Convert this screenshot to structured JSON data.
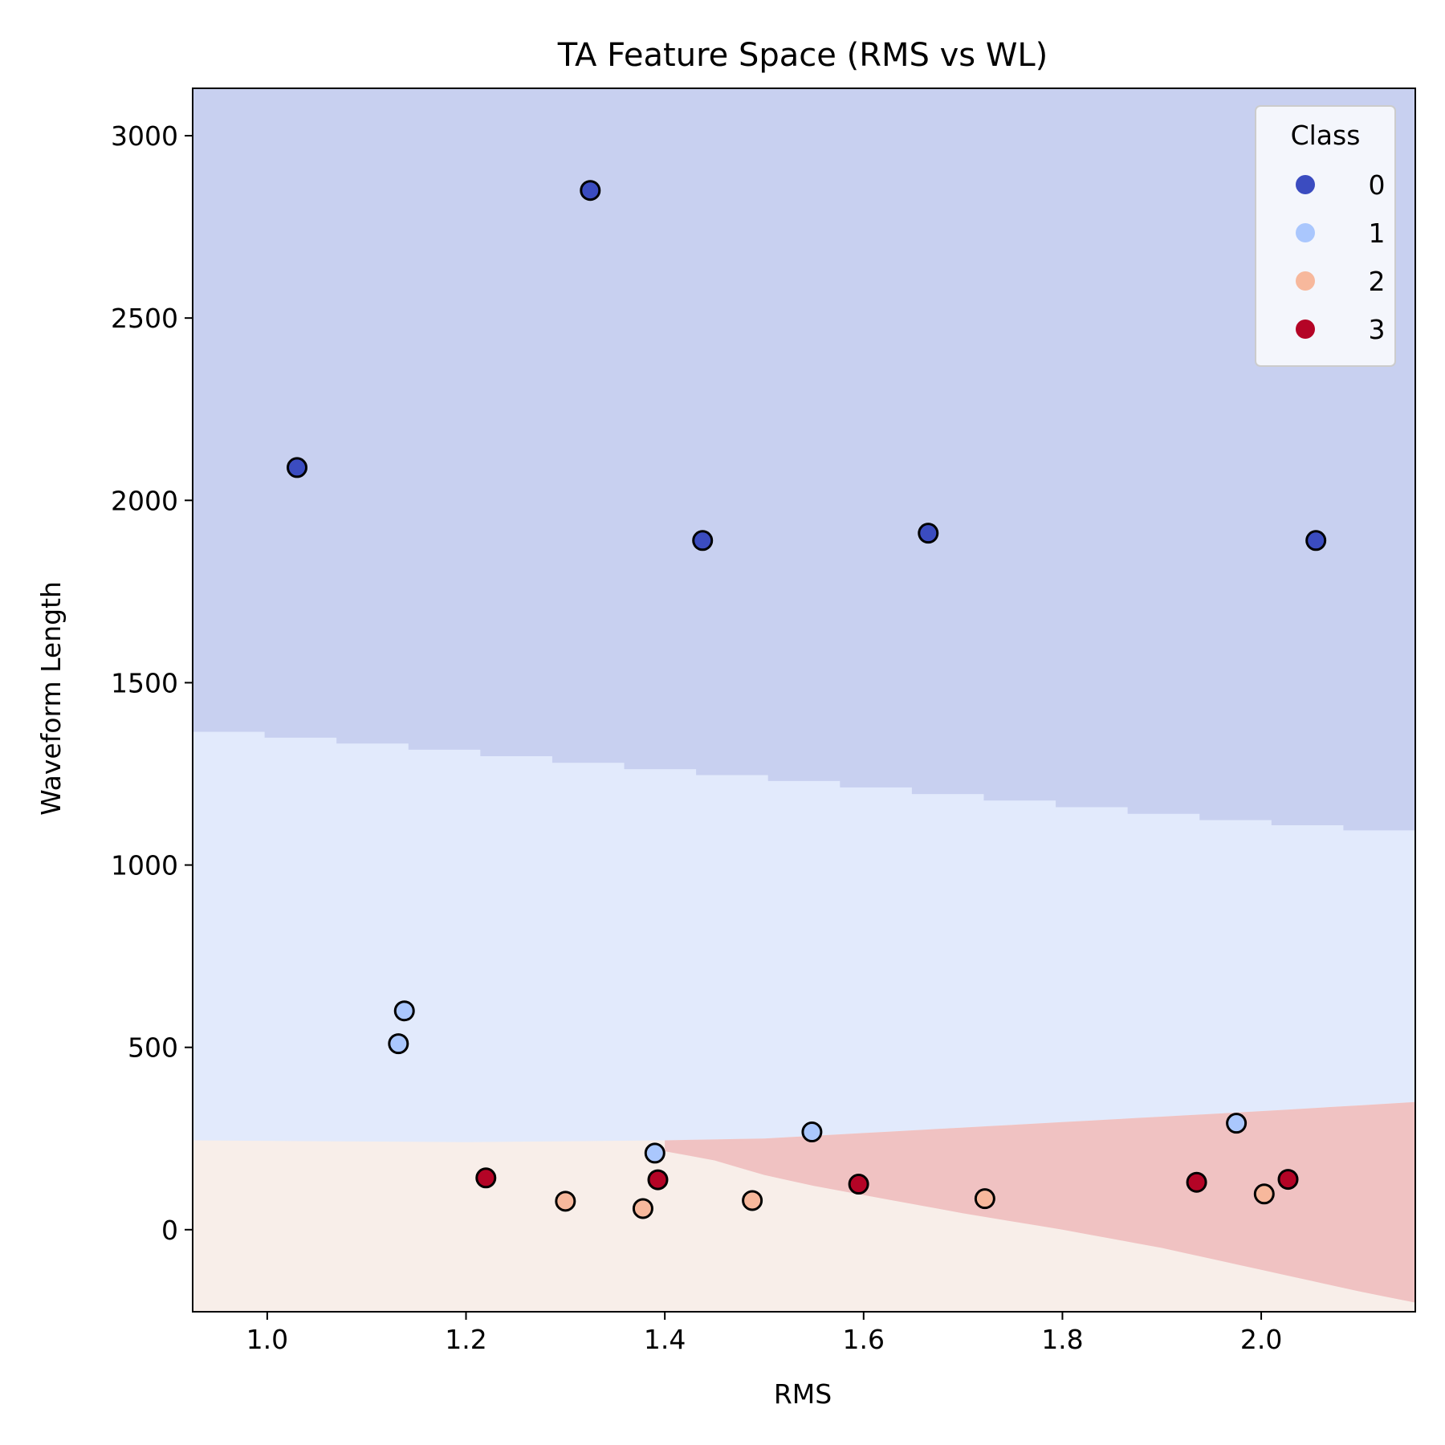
{
  "chart_data": {
    "type": "scatter",
    "title": "TA Feature Space (RMS vs WL)",
    "xlabel": "RMS",
    "ylabel": "Waveform Length",
    "xlim": [
      0.925,
      2.155
    ],
    "ylim": [
      -225,
      3130
    ],
    "xticks": [
      1.0,
      1.2,
      1.4,
      1.6,
      1.8,
      2.0
    ],
    "xtick_labels": [
      "1.0",
      "1.2",
      "1.4",
      "1.6",
      "1.8",
      "2.0"
    ],
    "yticks": [
      0,
      500,
      1000,
      1500,
      2000,
      2500,
      3000
    ],
    "ytick_labels": [
      "0",
      "500",
      "1000",
      "1500",
      "2000",
      "2500",
      "3000"
    ],
    "grid": false,
    "legend": {
      "title": "Class",
      "placement": "top-right",
      "entries": [
        {
          "label": "0",
          "color": "#3b4cc0"
        },
        {
          "label": "1",
          "color": "#aac7fd"
        },
        {
          "label": "2",
          "color": "#f7b89c"
        },
        {
          "label": "3",
          "color": "#b40426"
        }
      ]
    },
    "decision_regions": [
      {
        "class": "0",
        "color": "#c8d0f0",
        "lower_boundary": [
          [
            0.925,
            1375
          ],
          [
            1.0,
            1365
          ],
          [
            1.2,
            1320
          ],
          [
            1.4,
            1270
          ],
          [
            1.6,
            1225
          ],
          [
            1.8,
            1175
          ],
          [
            2.0,
            1125
          ],
          [
            2.155,
            1095
          ]
        ]
      },
      {
        "class": "1",
        "color": "#e2eafc",
        "lower_boundary": [
          [
            0.925,
            245
          ],
          [
            1.2,
            240
          ],
          [
            1.4,
            245
          ],
          [
            1.5,
            250
          ],
          [
            1.6,
            265
          ],
          [
            1.7,
            280
          ],
          [
            1.8,
            295
          ],
          [
            1.9,
            310
          ],
          [
            2.0,
            325
          ],
          [
            2.155,
            350
          ]
        ]
      },
      {
        "class": "3",
        "color": "#f0c2c2",
        "lower_boundary": [
          [
            1.4,
            215
          ],
          [
            1.45,
            190
          ],
          [
            1.5,
            150
          ],
          [
            1.55,
            120
          ],
          [
            1.6,
            95
          ],
          [
            1.7,
            45
          ],
          [
            1.8,
            0
          ],
          [
            1.9,
            -50
          ],
          [
            2.0,
            -110
          ],
          [
            2.1,
            -170
          ],
          [
            2.155,
            -200
          ]
        ]
      },
      {
        "class": "2",
        "color": "#f8eee9"
      }
    ],
    "series": [
      {
        "name": "0",
        "color": "#3b4cc0",
        "points": [
          [
            1.03,
            2090
          ],
          [
            1.325,
            2850
          ],
          [
            1.438,
            1890
          ],
          [
            1.665,
            1910
          ],
          [
            2.055,
            1890
          ]
        ]
      },
      {
        "name": "1",
        "color": "#aac7fd",
        "points": [
          [
            1.138,
            600
          ],
          [
            1.132,
            510
          ],
          [
            1.39,
            210
          ],
          [
            1.548,
            268
          ],
          [
            1.975,
            292
          ]
        ]
      },
      {
        "name": "2",
        "color": "#f7b89c",
        "points": [
          [
            1.3,
            78
          ],
          [
            1.378,
            58
          ],
          [
            1.488,
            80
          ],
          [
            1.722,
            85
          ],
          [
            2.003,
            98
          ]
        ]
      },
      {
        "name": "3",
        "color": "#b40426",
        "points": [
          [
            1.22,
            142
          ],
          [
            1.393,
            137
          ],
          [
            1.595,
            125
          ],
          [
            1.935,
            130
          ],
          [
            2.027,
            138
          ]
        ]
      }
    ]
  }
}
